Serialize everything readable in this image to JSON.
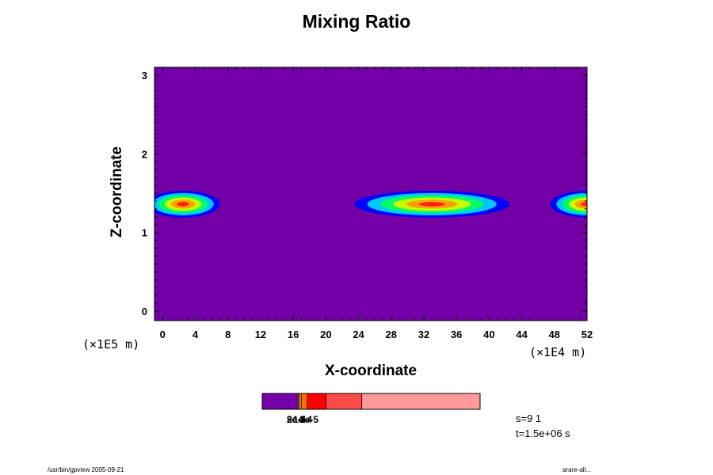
{
  "chart_data": {
    "type": "heatmap",
    "title": "Mixing Ratio",
    "xlabel": "X-coordinate",
    "ylabel": "Z-coordinate",
    "x_unit": "(×1E4 m)",
    "y_unit": "(×1E5 m)",
    "xlim": [
      -1,
      52
    ],
    "ylim": [
      -0.12,
      3.1
    ],
    "x_ticks": [
      0,
      4,
      8,
      12,
      16,
      20,
      24,
      28,
      32,
      36,
      40,
      44,
      48,
      52
    ],
    "y_ticks": [
      0,
      1,
      2,
      3
    ],
    "background_color": "#7300a6",
    "colorbar": {
      "colors": [
        "#7300a6",
        "#f5c400",
        "#ff9a00",
        "#ff6a00",
        "#ff0000",
        "#ff4a4a",
        "#ff9a9a"
      ],
      "fractions": [
        0.165,
        0.006,
        0.008,
        0.028,
        0.086,
        0.164,
        0.543
      ],
      "labels": [
        "2e-5",
        "5e-4",
        "1e-4",
        "3e-5"
      ],
      "label_text": "3e-5e-4"
    },
    "plumes": [
      {
        "x_center": 2.5,
        "z_center": 1.36,
        "x_halfwidth": 4.5,
        "z_halfwidth": 0.17
      },
      {
        "x_center": 33,
        "z_center": 1.36,
        "x_halfwidth": 9.5,
        "z_halfwidth": 0.17
      },
      {
        "x_center": 52,
        "z_center": 1.36,
        "x_halfwidth": 4.5,
        "z_halfwidth": 0.17
      }
    ],
    "plume_colors": [
      "#0000ff",
      "#00c8ff",
      "#00ff64",
      "#c8ff00",
      "#ffa000",
      "#ff2020"
    ]
  },
  "info": {
    "step": "s=9 1",
    "time": "t=1.5e+06 s"
  },
  "footer": {
    "left": "/usr/bin/gpview 2005-09-21",
    "right": "arare-all..."
  }
}
